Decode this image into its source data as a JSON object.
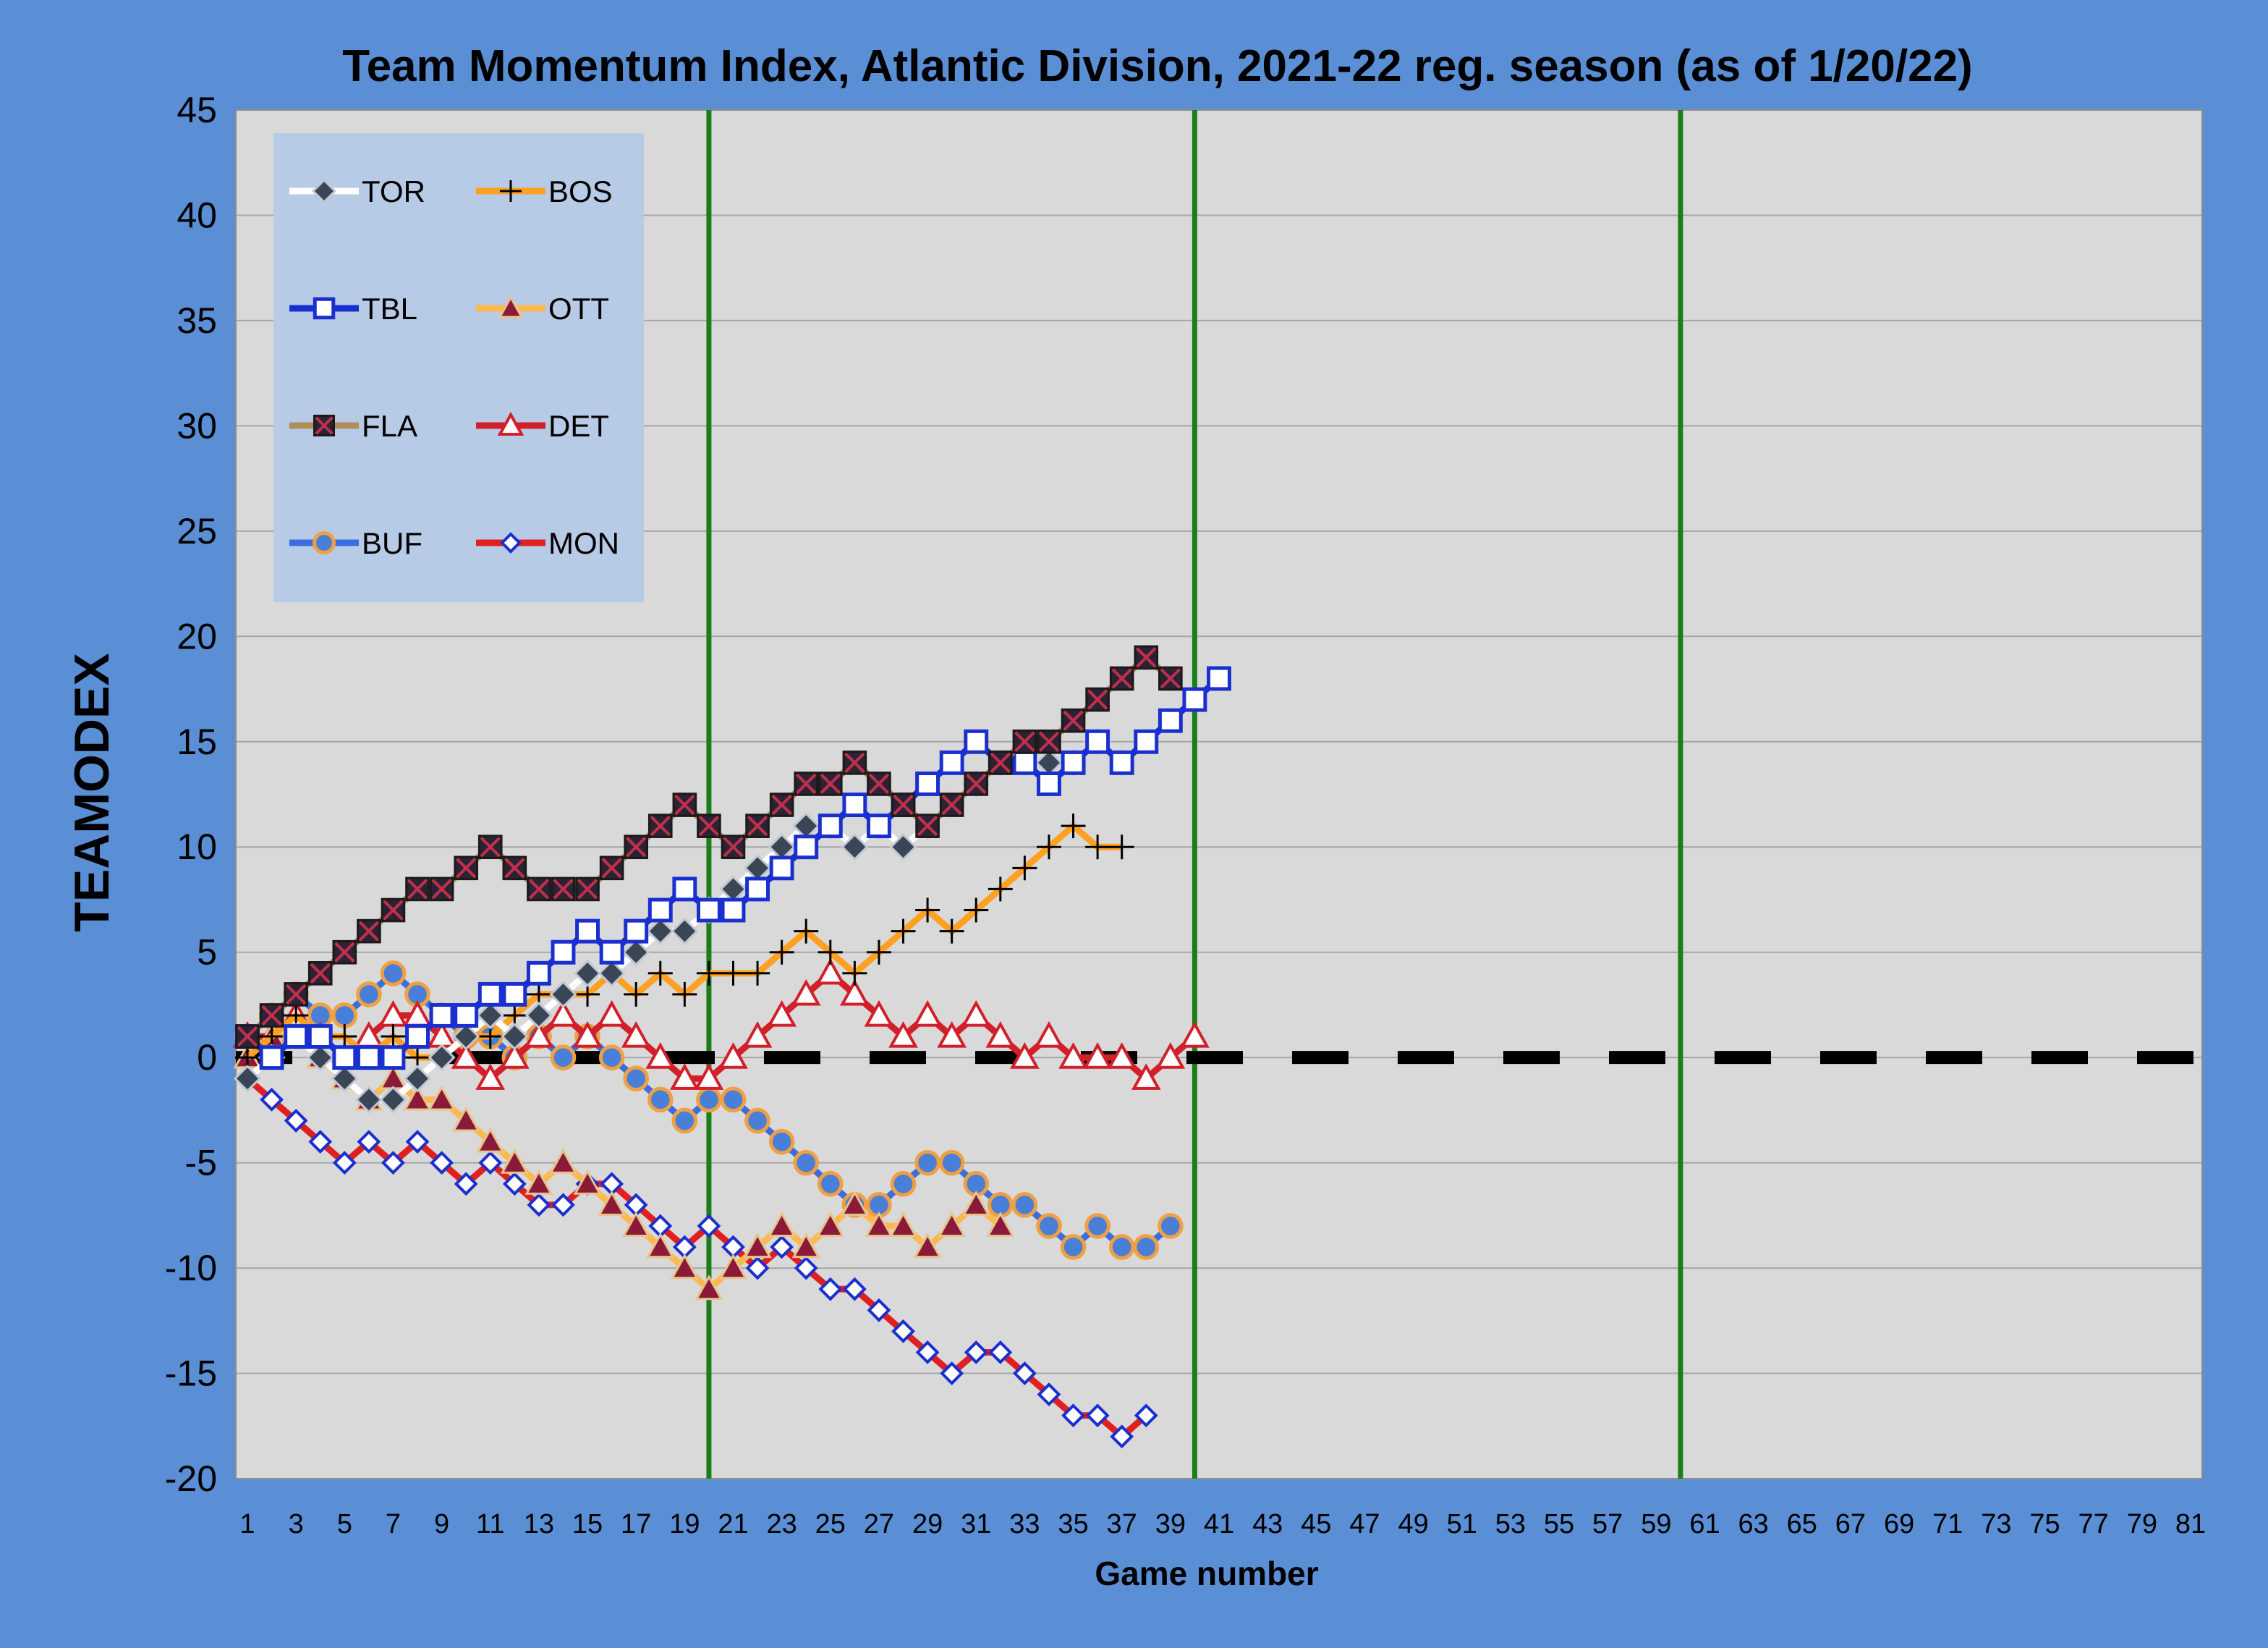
{
  "chart_data": {
    "type": "line",
    "title": "Team Momentum Index, Atlantic Division, 2021-22 reg. season (as of 1/20/22)",
    "xlabel": "Game number",
    "ylabel": "TEAMODEX",
    "xlim": [
      1,
      81
    ],
    "ylim": [
      -20,
      45
    ],
    "yticks": [
      -20,
      -15,
      -10,
      -5,
      0,
      5,
      10,
      15,
      20,
      25,
      30,
      35,
      40,
      45
    ],
    "xticks": [
      1,
      3,
      5,
      7,
      9,
      11,
      13,
      15,
      17,
      19,
      21,
      23,
      25,
      27,
      29,
      31,
      33,
      35,
      37,
      39,
      41,
      43,
      45,
      47,
      49,
      51,
      53,
      55,
      57,
      59,
      61,
      63,
      65,
      67,
      69,
      71,
      73,
      75,
      77,
      79,
      81
    ],
    "grid": true,
    "background": "#d9d9d9",
    "frame_color": "#5a8fd6",
    "reference_line": {
      "y": 0,
      "style": "dashed",
      "color": "#000000"
    },
    "vertical_lines": {
      "x": [
        20,
        40,
        60
      ],
      "color": "#1a7f1a"
    },
    "legend_position": "top-left",
    "series": [
      {
        "name": "TOR",
        "marker": "diamond-dark",
        "line_color": "#ffffff",
        "marker_fill": "#3a4656",
        "x": [
          1,
          2,
          3,
          4,
          5,
          6,
          7,
          8,
          9,
          10,
          11,
          12,
          13,
          14,
          15,
          16,
          17,
          18,
          19,
          20,
          21,
          22,
          23,
          24,
          25,
          26,
          27,
          28,
          29,
          30,
          31,
          32,
          33,
          34,
          35,
          36,
          37
        ],
        "y": [
          -1,
          0,
          1,
          0,
          -1,
          -2,
          -2,
          -1,
          0,
          1,
          2,
          1,
          2,
          3,
          4,
          4,
          5,
          6,
          6,
          7,
          8,
          9,
          10,
          11,
          11,
          10,
          11,
          10,
          11,
          12,
          13,
          14,
          14,
          14,
          14,
          15,
          14
        ]
      },
      {
        "name": "BOS",
        "marker": "plus",
        "line_color": "#ffa020",
        "marker_fill": "#000000",
        "x": [
          1,
          2,
          3,
          4,
          5,
          6,
          7,
          8,
          9,
          10,
          11,
          12,
          13,
          14,
          15,
          16,
          17,
          18,
          19,
          20,
          21,
          22,
          23,
          24,
          25,
          26,
          27,
          28,
          29,
          30,
          31,
          32,
          33,
          34,
          35,
          36,
          37
        ],
        "y": [
          0,
          1,
          2,
          1,
          1,
          0,
          1,
          0,
          0,
          1,
          1,
          2,
          3,
          3,
          3,
          4,
          3,
          4,
          3,
          4,
          4,
          4,
          5,
          6,
          5,
          4,
          5,
          6,
          7,
          6,
          7,
          8,
          9,
          10,
          11,
          10,
          10
        ]
      },
      {
        "name": "TBL",
        "marker": "square-open",
        "line_color": "#1a2fd0",
        "marker_fill": "#ffffff",
        "x": [
          1,
          2,
          3,
          4,
          5,
          6,
          7,
          8,
          9,
          10,
          11,
          12,
          13,
          14,
          15,
          16,
          17,
          18,
          19,
          20,
          21,
          22,
          23,
          24,
          25,
          26,
          27,
          28,
          29,
          30,
          31,
          32,
          33,
          34,
          35,
          36,
          37,
          38,
          39,
          40,
          41
        ],
        "y": [
          1,
          0,
          1,
          1,
          0,
          0,
          0,
          1,
          2,
          2,
          3,
          3,
          4,
          5,
          6,
          5,
          6,
          7,
          8,
          7,
          7,
          8,
          9,
          10,
          11,
          12,
          11,
          12,
          13,
          14,
          15,
          14,
          14,
          13,
          14,
          15,
          14,
          15,
          16,
          17,
          18
        ]
      },
      {
        "name": "OTT",
        "marker": "triangle-dark",
        "line_color": "#ffb84d",
        "marker_fill": "#8b1a3a",
        "x": [
          1,
          2,
          3,
          4,
          5,
          6,
          7,
          8,
          9,
          10,
          11,
          12,
          13,
          14,
          15,
          16,
          17,
          18,
          19,
          20,
          21,
          22,
          23,
          24,
          25,
          26,
          27,
          28,
          29,
          30,
          31,
          32
        ],
        "y": [
          0,
          1,
          1,
          0,
          -1,
          -2,
          -1,
          -2,
          -2,
          -3,
          -4,
          -5,
          -6,
          -5,
          -6,
          -7,
          -8,
          -9,
          -10,
          -11,
          -10,
          -9,
          -8,
          -9,
          -8,
          -7,
          -8,
          -8,
          -9,
          -8,
          -7,
          -8
        ]
      },
      {
        "name": "FLA",
        "marker": "square-x",
        "line_color": "#b08d5a",
        "marker_fill": "#2b2236",
        "x": [
          1,
          2,
          3,
          4,
          5,
          6,
          7,
          8,
          9,
          10,
          11,
          12,
          13,
          14,
          15,
          16,
          17,
          18,
          19,
          20,
          21,
          22,
          23,
          24,
          25,
          26,
          27,
          28,
          29,
          30,
          31,
          32,
          33,
          34,
          35,
          36,
          37,
          38,
          39
        ],
        "y": [
          1,
          2,
          3,
          4,
          5,
          6,
          7,
          8,
          8,
          9,
          10,
          9,
          8,
          8,
          8,
          9,
          10,
          11,
          12,
          11,
          10,
          11,
          12,
          13,
          13,
          14,
          13,
          12,
          11,
          12,
          13,
          14,
          15,
          15,
          16,
          17,
          18,
          19,
          18
        ]
      },
      {
        "name": "DET",
        "marker": "triangle-open",
        "line_color": "#d21f2a",
        "marker_fill": "#ffffff",
        "x": [
          1,
          2,
          3,
          4,
          5,
          6,
          7,
          8,
          9,
          10,
          11,
          12,
          13,
          14,
          15,
          16,
          17,
          18,
          19,
          20,
          21,
          22,
          23,
          24,
          25,
          26,
          27,
          28,
          29,
          30,
          31,
          32,
          33,
          34,
          35,
          36,
          37,
          38,
          39,
          40
        ],
        "y": [
          1,
          1,
          2,
          1,
          0,
          1,
          2,
          2,
          1,
          0,
          -1,
          0,
          1,
          2,
          1,
          2,
          1,
          0,
          -1,
          -1,
          0,
          1,
          2,
          3,
          4,
          3,
          2,
          1,
          2,
          1,
          2,
          1,
          0,
          1,
          0,
          0,
          0,
          -1,
          0,
          1
        ]
      },
      {
        "name": "BUF",
        "marker": "circle-orange",
        "line_color": "#3a6ee0",
        "marker_fill": "#4a7fd8",
        "x": [
          1,
          2,
          3,
          4,
          5,
          6,
          7,
          8,
          9,
          10,
          11,
          12,
          13,
          14,
          15,
          16,
          17,
          18,
          19,
          20,
          21,
          22,
          23,
          24,
          25,
          26,
          27,
          28,
          29,
          30,
          31,
          32,
          33,
          34,
          35,
          36,
          37,
          38,
          39
        ],
        "y": [
          1,
          2,
          3,
          2,
          2,
          3,
          4,
          3,
          2,
          1,
          1,
          0,
          1,
          0,
          1,
          0,
          -1,
          -2,
          -3,
          -2,
          -2,
          -3,
          -4,
          -5,
          -6,
          -7,
          -7,
          -6,
          -5,
          -5,
          -6,
          -7,
          -7,
          -8,
          -9,
          -8,
          -9,
          -9,
          -8
        ]
      },
      {
        "name": "MON",
        "marker": "diamond-open",
        "line_color": "#e02020",
        "marker_fill": "#ffffff",
        "x": [
          1,
          2,
          3,
          4,
          5,
          6,
          7,
          8,
          9,
          10,
          11,
          12,
          13,
          14,
          15,
          16,
          17,
          18,
          19,
          20,
          21,
          22,
          23,
          24,
          25,
          26,
          27,
          28,
          29,
          30,
          31,
          32,
          33,
          34,
          35,
          36,
          37,
          38
        ],
        "y": [
          -1,
          -2,
          -3,
          -4,
          -5,
          -4,
          -5,
          -4,
          -5,
          -6,
          -5,
          -6,
          -7,
          -7,
          -6,
          -6,
          -7,
          -8,
          -9,
          -8,
          -9,
          -10,
          -9,
          -10,
          -11,
          -11,
          -12,
          -13,
          -14,
          -15,
          -14,
          -14,
          -15,
          -16,
          -17,
          -17,
          -18,
          -17
        ]
      }
    ]
  }
}
